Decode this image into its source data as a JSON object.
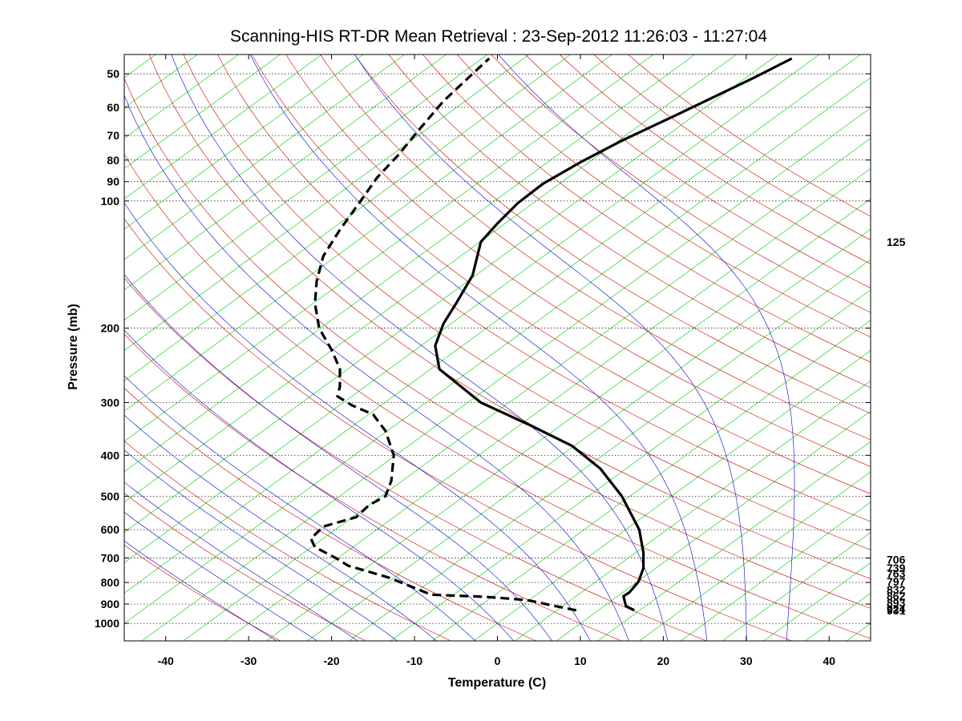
{
  "chart_data": {
    "type": "line",
    "title": "Scanning-HIS RT-DR Mean Retrieval : 23-Sep-2012 11:26:03 - 11:27:04",
    "xlabel": "Temperature (C)",
    "ylabel": "Pressure (mb)",
    "xlim": [
      -45,
      45
    ],
    "ylim": [
      1100,
      45
    ],
    "y_scale": "log",
    "grid": true,
    "x_ticks": [
      "-40",
      "-30",
      "-20",
      "-10",
      "0",
      "10",
      "20",
      "30",
      "40"
    ],
    "y_ticks": [
      "50",
      "60",
      "70",
      "80",
      "90",
      "100",
      "200",
      "300",
      "400",
      "500",
      "600",
      "700",
      "800",
      "900",
      "1000"
    ],
    "right_labels": [
      "125",
      "706",
      "739",
      "763",
      "797",
      "832",
      "862",
      "893",
      "924",
      "931"
    ],
    "colors": {
      "temperature": "#000000",
      "dewpoint": "#000000",
      "dry_adiabats": "#cc0000",
      "moist_adiabats": "#0000cc",
      "isotherms": "#00cc00",
      "background": "#ffffff"
    },
    "series": [
      {
        "style": "solid",
        "points": [
          {
            "t": 16.5,
            "p": 931
          },
          {
            "t": 15.5,
            "p": 910
          },
          {
            "t": 15.2,
            "p": 862
          },
          {
            "t": 15.9,
            "p": 845
          },
          {
            "t": 17.0,
            "p": 797
          },
          {
            "t": 17.6,
            "p": 740
          },
          {
            "t": 17.6,
            "p": 680
          },
          {
            "t": 17.1,
            "p": 600
          },
          {
            "t": 15.0,
            "p": 500
          },
          {
            "t": 12.4,
            "p": 430
          },
          {
            "t": 9.0,
            "p": 380
          },
          {
            "t": 4.0,
            "p": 340
          },
          {
            "t": -2.0,
            "p": 300
          },
          {
            "t": -7.0,
            "p": 250
          },
          {
            "t": -7.5,
            "p": 220
          },
          {
            "t": -6.5,
            "p": 195
          },
          {
            "t": -5.0,
            "p": 175
          },
          {
            "t": -3.0,
            "p": 150
          },
          {
            "t": -2.0,
            "p": 125
          },
          {
            "t": 0.0,
            "p": 113
          },
          {
            "t": 2.5,
            "p": 101
          },
          {
            "t": 5.5,
            "p": 91
          },
          {
            "t": 10.0,
            "p": 81
          },
          {
            "t": 15.0,
            "p": 72
          },
          {
            "t": 22.0,
            "p": 62
          },
          {
            "t": 31.0,
            "p": 51
          },
          {
            "t": 35.5,
            "p": 46
          }
        ]
      },
      {
        "style": "dashed",
        "points": [
          {
            "t": 9.5,
            "p": 931
          },
          {
            "t": 7.0,
            "p": 910
          },
          {
            "t": 3.5,
            "p": 880
          },
          {
            "t": -1.5,
            "p": 865
          },
          {
            "t": -8.0,
            "p": 855
          },
          {
            "t": -13.0,
            "p": 780
          },
          {
            "t": -18.0,
            "p": 730
          },
          {
            "t": -19.5,
            "p": 700
          },
          {
            "t": -22.0,
            "p": 660
          },
          {
            "t": -22.5,
            "p": 630
          },
          {
            "t": -21.0,
            "p": 590
          },
          {
            "t": -17.0,
            "p": 560
          },
          {
            "t": -15.5,
            "p": 525
          },
          {
            "t": -13.5,
            "p": 500
          },
          {
            "t": -12.8,
            "p": 460
          },
          {
            "t": -12.5,
            "p": 400
          },
          {
            "t": -13.5,
            "p": 350
          },
          {
            "t": -15.0,
            "p": 320
          },
          {
            "t": -17.5,
            "p": 305
          },
          {
            "t": -19.3,
            "p": 290
          },
          {
            "t": -19.0,
            "p": 275
          },
          {
            "t": -19.0,
            "p": 250
          },
          {
            "t": -20.0,
            "p": 225
          },
          {
            "t": -21.5,
            "p": 200
          },
          {
            "t": -22.0,
            "p": 175
          },
          {
            "t": -21.8,
            "p": 155
          },
          {
            "t": -21.0,
            "p": 135
          },
          {
            "t": -19.0,
            "p": 117
          },
          {
            "t": -16.5,
            "p": 100
          },
          {
            "t": -14.5,
            "p": 88
          },
          {
            "t": -12.0,
            "p": 78
          },
          {
            "t": -9.5,
            "p": 68
          },
          {
            "t": -6.5,
            "p": 58
          },
          {
            "t": -3.0,
            "p": 50
          },
          {
            "t": -1.0,
            "p": 46
          }
        ]
      }
    ]
  }
}
